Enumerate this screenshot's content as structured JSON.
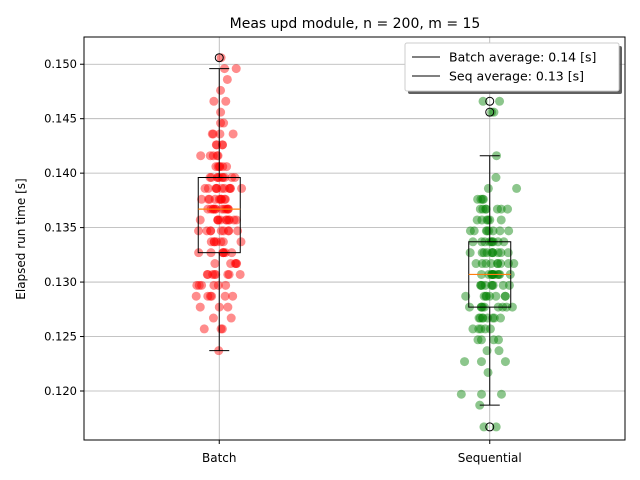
{
  "chart_data": {
    "type": "box",
    "title": "Meas upd module, n = 200, m = 15",
    "xlabel": "",
    "ylabel": "Elapsed run time [s]",
    "ylim": [
      0.1155,
      0.1525
    ],
    "yticks": [
      0.12,
      0.125,
      0.13,
      0.135,
      0.14,
      0.145,
      0.15
    ],
    "ytick_labels": [
      "0.120",
      "0.125",
      "0.130",
      "0.135",
      "0.140",
      "0.145",
      "0.150"
    ],
    "grid": true,
    "legend_position": "top-right",
    "legend": [
      {
        "label": "Batch average: 0.14 [s]"
      },
      {
        "label": "Seq average: 0.13 [s]"
      }
    ],
    "categories": [
      "Batch",
      "Sequential"
    ],
    "series": [
      {
        "point_color": "#ff0000",
        "box": {
          "whislo": 0.1237,
          "q1": 0.1327,
          "med": 0.1367,
          "q3": 0.1396,
          "whishi": 0.1496
        },
        "fliers": [
          0.1506
        ],
        "points": [
          0.1506,
          0.1496,
          0.1496,
          0.1486,
          0.1476,
          0.1466,
          0.1466,
          0.1456,
          0.1446,
          0.1446,
          0.1436,
          0.1436,
          0.1436,
          0.1436,
          0.1426,
          0.1426,
          0.1426,
          0.1426,
          0.1416,
          0.1416,
          0.1416,
          0.1416,
          0.1416,
          0.1406,
          0.1406,
          0.1406,
          0.1406,
          0.1406,
          0.1406,
          0.1396,
          0.1396,
          0.1396,
          0.1396,
          0.1396,
          0.1396,
          0.1396,
          0.1396,
          0.1396,
          0.1396,
          0.1386,
          0.1386,
          0.1386,
          0.1386,
          0.1386,
          0.1386,
          0.1386,
          0.1386,
          0.1386,
          0.1386,
          0.1386,
          0.1376,
          0.1376,
          0.1376,
          0.1376,
          0.1376,
          0.1376,
          0.1376,
          0.1376,
          0.1376,
          0.1376,
          0.1367,
          0.1367,
          0.1367,
          0.1367,
          0.1367,
          0.1367,
          0.1367,
          0.1367,
          0.1367,
          0.1367,
          0.1367,
          0.1367,
          0.1357,
          0.1357,
          0.1357,
          0.1357,
          0.1357,
          0.1357,
          0.1357,
          0.1357,
          0.1357,
          0.1357,
          0.1357,
          0.1347,
          0.1347,
          0.1347,
          0.1347,
          0.1347,
          0.1347,
          0.1347,
          0.1347,
          0.1347,
          0.1337,
          0.1337,
          0.1337,
          0.1337,
          0.1337,
          0.1337,
          0.1337,
          0.1327,
          0.1327,
          0.1327,
          0.1327,
          0.1327,
          0.1327,
          0.1327,
          0.1317,
          0.1317,
          0.1317,
          0.1317,
          0.1317,
          0.1307,
          0.1307,
          0.1307,
          0.1307,
          0.1307,
          0.1307,
          0.1307,
          0.1307,
          0.1297,
          0.1297,
          0.1297,
          0.1297,
          0.1297,
          0.1297,
          0.1287,
          0.1287,
          0.1287,
          0.1287,
          0.1287,
          0.1287,
          0.1277,
          0.1277,
          0.1277,
          0.1267,
          0.1267,
          0.1257,
          0.1257,
          0.1257,
          0.1237
        ]
      },
      {
        "point_color": "#008000",
        "box": {
          "whislo": 0.1187,
          "q1": 0.1277,
          "med": 0.1307,
          "q3": 0.1337,
          "whishi": 0.1416
        },
        "fliers": [
          0.1466,
          0.1456,
          0.1167
        ],
        "points": [
          0.1466,
          0.1466,
          0.1456,
          0.1456,
          0.1416,
          0.1396,
          0.1386,
          0.1386,
          0.1376,
          0.1376,
          0.1376,
          0.1376,
          0.1367,
          0.1367,
          0.1367,
          0.1367,
          0.1367,
          0.1367,
          0.1367,
          0.1357,
          0.1357,
          0.1357,
          0.1357,
          0.1357,
          0.1357,
          0.1347,
          0.1347,
          0.1347,
          0.1347,
          0.1347,
          0.1347,
          0.1347,
          0.1347,
          0.1337,
          0.1337,
          0.1337,
          0.1337,
          0.1337,
          0.1337,
          0.1337,
          0.1337,
          0.1337,
          0.1327,
          0.1327,
          0.1327,
          0.1327,
          0.1327,
          0.1327,
          0.1327,
          0.1327,
          0.1327,
          0.1327,
          0.1317,
          0.1317,
          0.1317,
          0.1317,
          0.1317,
          0.1317,
          0.1317,
          0.1317,
          0.1317,
          0.1307,
          0.1307,
          0.1307,
          0.1307,
          0.1307,
          0.1307,
          0.1307,
          0.1307,
          0.1307,
          0.1307,
          0.1307,
          0.1297,
          0.1297,
          0.1297,
          0.1297,
          0.1297,
          0.1297,
          0.1297,
          0.1297,
          0.1297,
          0.1287,
          0.1287,
          0.1287,
          0.1287,
          0.1287,
          0.1287,
          0.1287,
          0.1287,
          0.1277,
          0.1277,
          0.1277,
          0.1277,
          0.1277,
          0.1277,
          0.1277,
          0.1277,
          0.1277,
          0.1267,
          0.1267,
          0.1267,
          0.1267,
          0.1267,
          0.1267,
          0.1267,
          0.1267,
          0.1257,
          0.1257,
          0.1257,
          0.1257,
          0.1257,
          0.1247,
          0.1247,
          0.1247,
          0.1247,
          0.1237,
          0.1237,
          0.1227,
          0.1227,
          0.1227,
          0.1217,
          0.1197,
          0.1197,
          0.1197,
          0.1187,
          0.1167,
          0.1167
        ]
      }
    ]
  }
}
